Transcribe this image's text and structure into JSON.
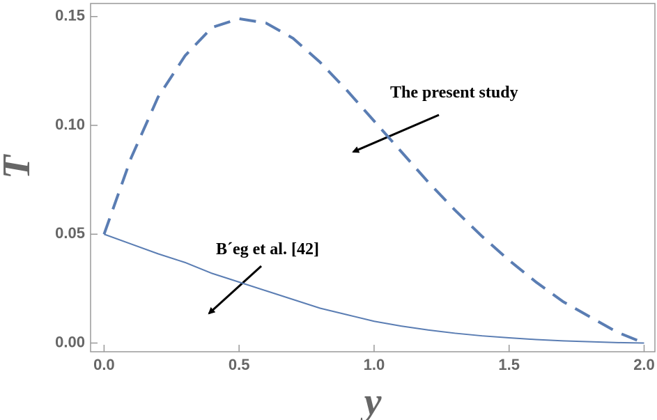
{
  "chart_data": {
    "type": "line",
    "x": [
      0,
      0.1,
      0.2,
      0.3,
      0.4,
      0.5,
      0.6,
      0.7,
      0.8,
      0.9,
      1.0,
      1.1,
      1.2,
      1.3,
      1.4,
      1.5,
      1.6,
      1.7,
      1.8,
      1.9,
      2.0
    ],
    "series": [
      {
        "name": "The present study",
        "color": "#5a7db3",
        "dashed": true,
        "values": [
          0.05,
          0.085,
          0.113,
          0.132,
          0.145,
          0.149,
          0.147,
          0.14,
          0.129,
          0.116,
          0.102,
          0.088,
          0.074,
          0.061,
          0.049,
          0.038,
          0.028,
          0.019,
          0.012,
          0.005,
          0
        ]
      },
      {
        "name": "B´eg et al. [42]",
        "color": "#5a7db3",
        "dashed": false,
        "values": [
          0.05,
          0.0455,
          0.041,
          0.037,
          0.032,
          0.028,
          0.024,
          0.02,
          0.016,
          0.013,
          0.01,
          0.0078,
          0.006,
          0.0045,
          0.0033,
          0.0024,
          0.0016,
          0.001,
          0.0006,
          0.0002,
          0
        ]
      }
    ],
    "xlabel": "y",
    "ylabel": "T",
    "xlim": [
      -0.05,
      2.04
    ],
    "ylim": [
      -0.004,
      0.156
    ],
    "xticks": [
      {
        "value": 0,
        "label": "0.0"
      },
      {
        "value": 0.5,
        "label": "0.5"
      },
      {
        "value": 1,
        "label": "1.0"
      },
      {
        "value": 1.5,
        "label": "1.5"
      },
      {
        "value": 2,
        "label": "2.0"
      }
    ],
    "yticks": [
      {
        "value": 0,
        "label": "0.00"
      },
      {
        "value": 0.05,
        "label": "0.05"
      },
      {
        "value": 0.1,
        "label": "0.10"
      },
      {
        "value": 0.15,
        "label": "0.15"
      }
    ]
  }
}
